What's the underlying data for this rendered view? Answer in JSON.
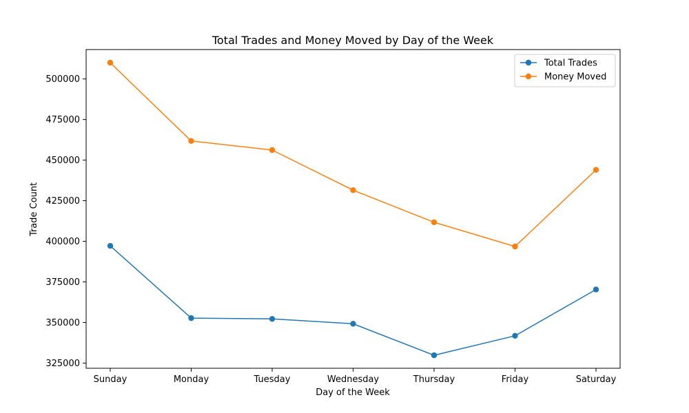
{
  "chart_data": {
    "type": "line",
    "title": "Total Trades and Money Moved by Day of the Week",
    "xlabel": "Day of the Week",
    "ylabel": "Trade Count",
    "categories": [
      "Sunday",
      "Monday",
      "Tuesday",
      "Wednesday",
      "Thursday",
      "Friday",
      "Saturday"
    ],
    "series": [
      {
        "name": "Total Trades",
        "color": "#1f77b4",
        "values": [
          397200,
          352700,
          352200,
          349200,
          329800,
          341800,
          370300
        ]
      },
      {
        "name": "Money Moved",
        "color": "#ff7f0e",
        "values": [
          510000,
          461800,
          456200,
          431500,
          411700,
          396800,
          444000
        ]
      }
    ],
    "yticks": [
      325000,
      350000,
      375000,
      400000,
      425000,
      450000,
      475000,
      500000
    ],
    "ylim": [
      321800,
      518100
    ],
    "grid": false,
    "legend_position": "top-right"
  }
}
